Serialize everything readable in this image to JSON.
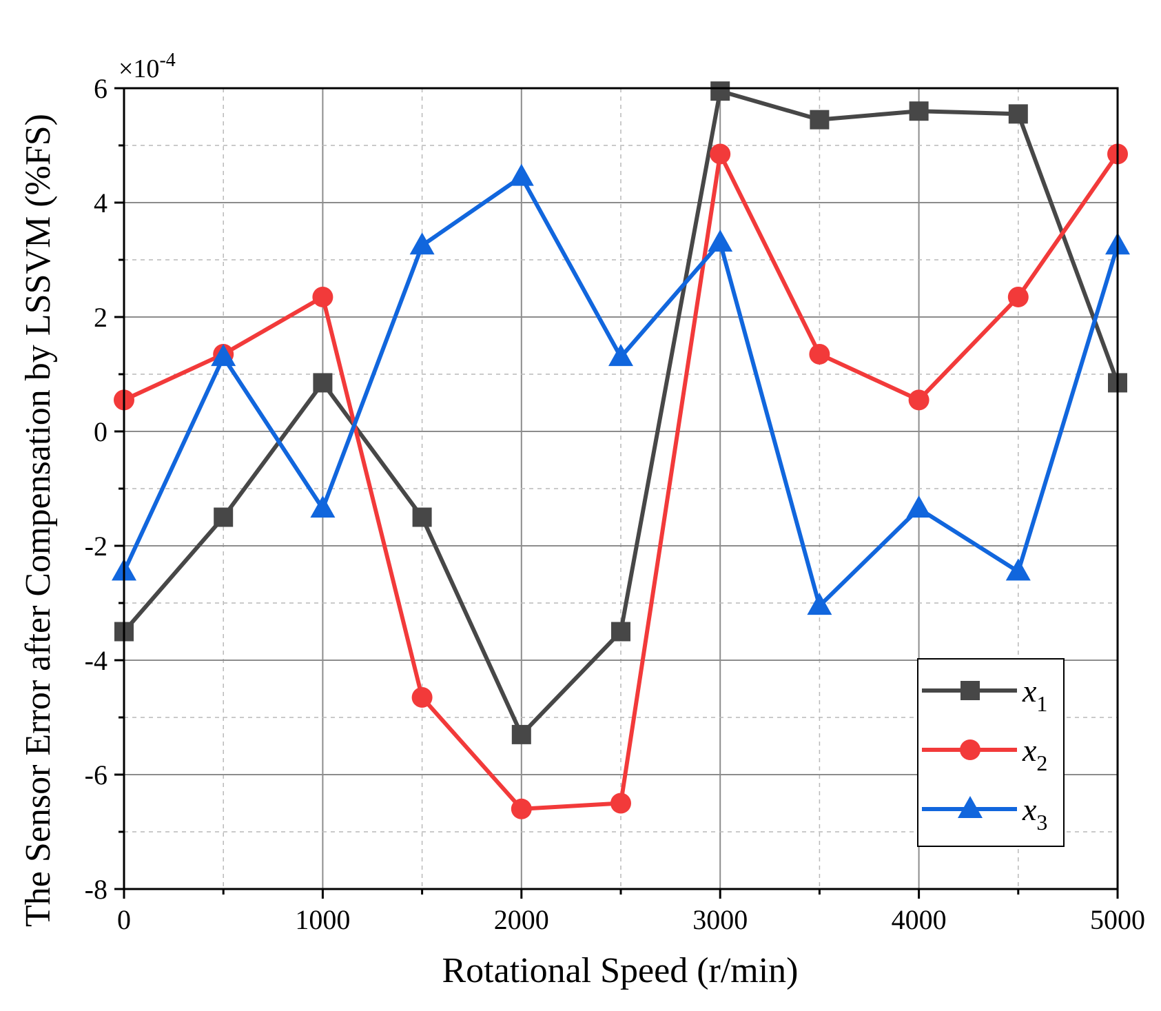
{
  "chart_data": {
    "type": "line",
    "xlabel": "Rotational Speed (r/min)",
    "ylabel": "The Sensor Error after Compensation by LSSVM (%FS)",
    "y_multiplier": {
      "base": "×10",
      "exponent": "-4"
    },
    "xlim": [
      0,
      5000
    ],
    "ylim": [
      -8,
      6
    ],
    "x_major_ticks": [
      0,
      1000,
      2000,
      3000,
      4000,
      5000
    ],
    "x_minor_ticks": [
      500,
      1500,
      2500,
      3500,
      4500
    ],
    "y_major_ticks": [
      -8,
      -6,
      -4,
      -2,
      0,
      2,
      4,
      6
    ],
    "y_minor_ticks": [
      -7,
      -5,
      -3,
      -1,
      1,
      3,
      5
    ],
    "x_tick_labels": [
      "0",
      "1000",
      "2000",
      "3000",
      "4000",
      "5000"
    ],
    "y_tick_labels": [
      "-8",
      "-6",
      "-4",
      "-2",
      "0",
      "2",
      "4",
      "6"
    ],
    "grid": true,
    "legend_position": "bottom-right",
    "x": [
      0,
      500,
      1000,
      1500,
      2000,
      2500,
      3000,
      3500,
      4000,
      4500,
      5000
    ],
    "series": [
      {
        "name": "x",
        "subscript": "1",
        "color": "#474747",
        "marker": "square",
        "values": [
          -3.5,
          -1.5,
          0.85,
          -1.5,
          -5.3,
          -3.5,
          5.95,
          5.45,
          5.6,
          5.55,
          0.85
        ]
      },
      {
        "name": "x",
        "subscript": "2",
        "color": "#f23a3a",
        "marker": "circle",
        "values": [
          0.55,
          1.35,
          2.35,
          -4.65,
          -6.6,
          -6.5,
          4.85,
          1.35,
          0.55,
          2.35,
          4.85
        ]
      },
      {
        "name": "x",
        "subscript": "3",
        "color": "#1166dd",
        "marker": "triangle",
        "values": [
          -2.45,
          1.3,
          -1.35,
          3.25,
          4.45,
          1.3,
          3.3,
          -3.05,
          -1.35,
          -2.45,
          3.25
        ]
      }
    ]
  }
}
